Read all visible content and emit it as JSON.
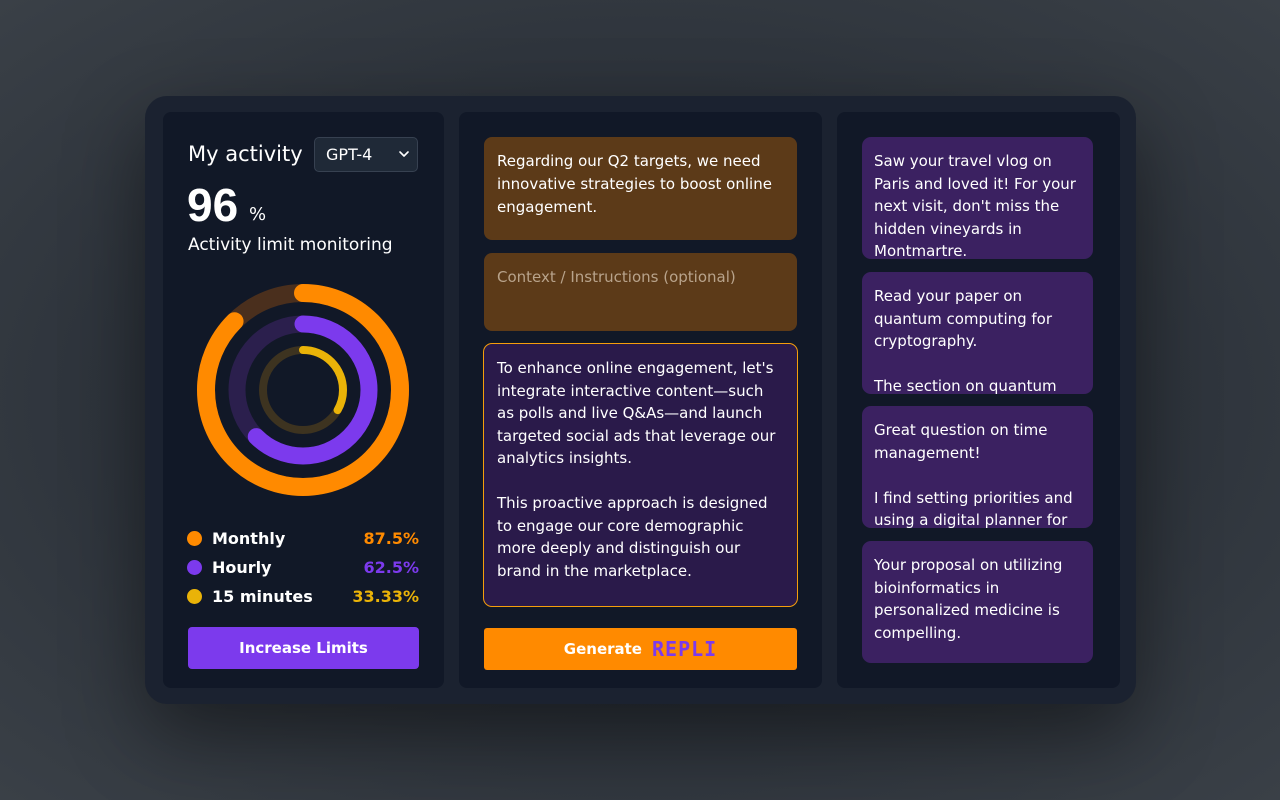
{
  "activity": {
    "title": "My activity",
    "model_selected": "GPT-4",
    "percent_value": "96",
    "percent_sign": "%",
    "subtitle": "Activity limit monitoring",
    "increase_button": "Increase Limits"
  },
  "rings": [
    {
      "name": "Monthly",
      "value": 87.5,
      "value_label": "87.5%",
      "color": "#ff8a00",
      "track": "#4a2f1d"
    },
    {
      "name": "Hourly",
      "value": 62.5,
      "value_label": "62.5%",
      "color": "#7c3aed",
      "track": "#2b1f4d"
    },
    {
      "name": "15 minutes",
      "value": 33.33,
      "value_label": "33.33%",
      "color": "#eab308",
      "track": "#3d3320"
    }
  ],
  "composer": {
    "prompt": "Regarding our Q2 targets, we need innovative strategies to boost online engagement.",
    "context_placeholder": "Context / Instructions (optional)",
    "reply_paragraphs": [
      "To enhance online engagement, let's integrate interactive content—such as polls and live Q&As—and launch targeted social ads that leverage our analytics insights.",
      "This proactive approach is designed to engage our core demographic more deeply and distinguish our brand in the marketplace."
    ],
    "generate_label": "Generate",
    "brand_label": "REPLI"
  },
  "messages": [
    {
      "text": "Saw your travel vlog on Paris and loved it! For your next visit, don't miss the hidden vineyards in Montmartre."
    },
    {
      "text": "Read your paper on quantum computing for cryptography.",
      "text2": "The section on quantum key distribution protocols is"
    },
    {
      "text": "Great question on time management!",
      "text2": "I find setting priorities and using a digital planner for"
    },
    {
      "text": "Your proposal on utilizing bioinformatics in personalized medicine is compelling."
    }
  ],
  "colors": {
    "accent_orange": "#ff8a00",
    "accent_purple": "#7c3aed",
    "accent_yellow": "#eab308",
    "panel_bg": "#111827"
  }
}
